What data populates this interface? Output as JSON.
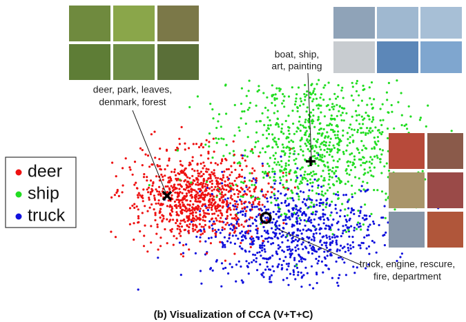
{
  "figure": {
    "caption": "(b) Visualization of CCA (V+T+C)",
    "legend": [
      {
        "label": "deer",
        "color": "#ee1111"
      },
      {
        "label": "ship",
        "color": "#22dd22"
      },
      {
        "label": "truck",
        "color": "#1111dd"
      }
    ],
    "annotations": [
      {
        "lines": [
          "deer, park, leaves,",
          "denmark, forest"
        ]
      },
      {
        "lines": [
          "boat, ship,",
          "art, painting"
        ]
      },
      {
        "lines": [
          "truck, engine, rescure,",
          "fire, department"
        ]
      }
    ]
  }
}
